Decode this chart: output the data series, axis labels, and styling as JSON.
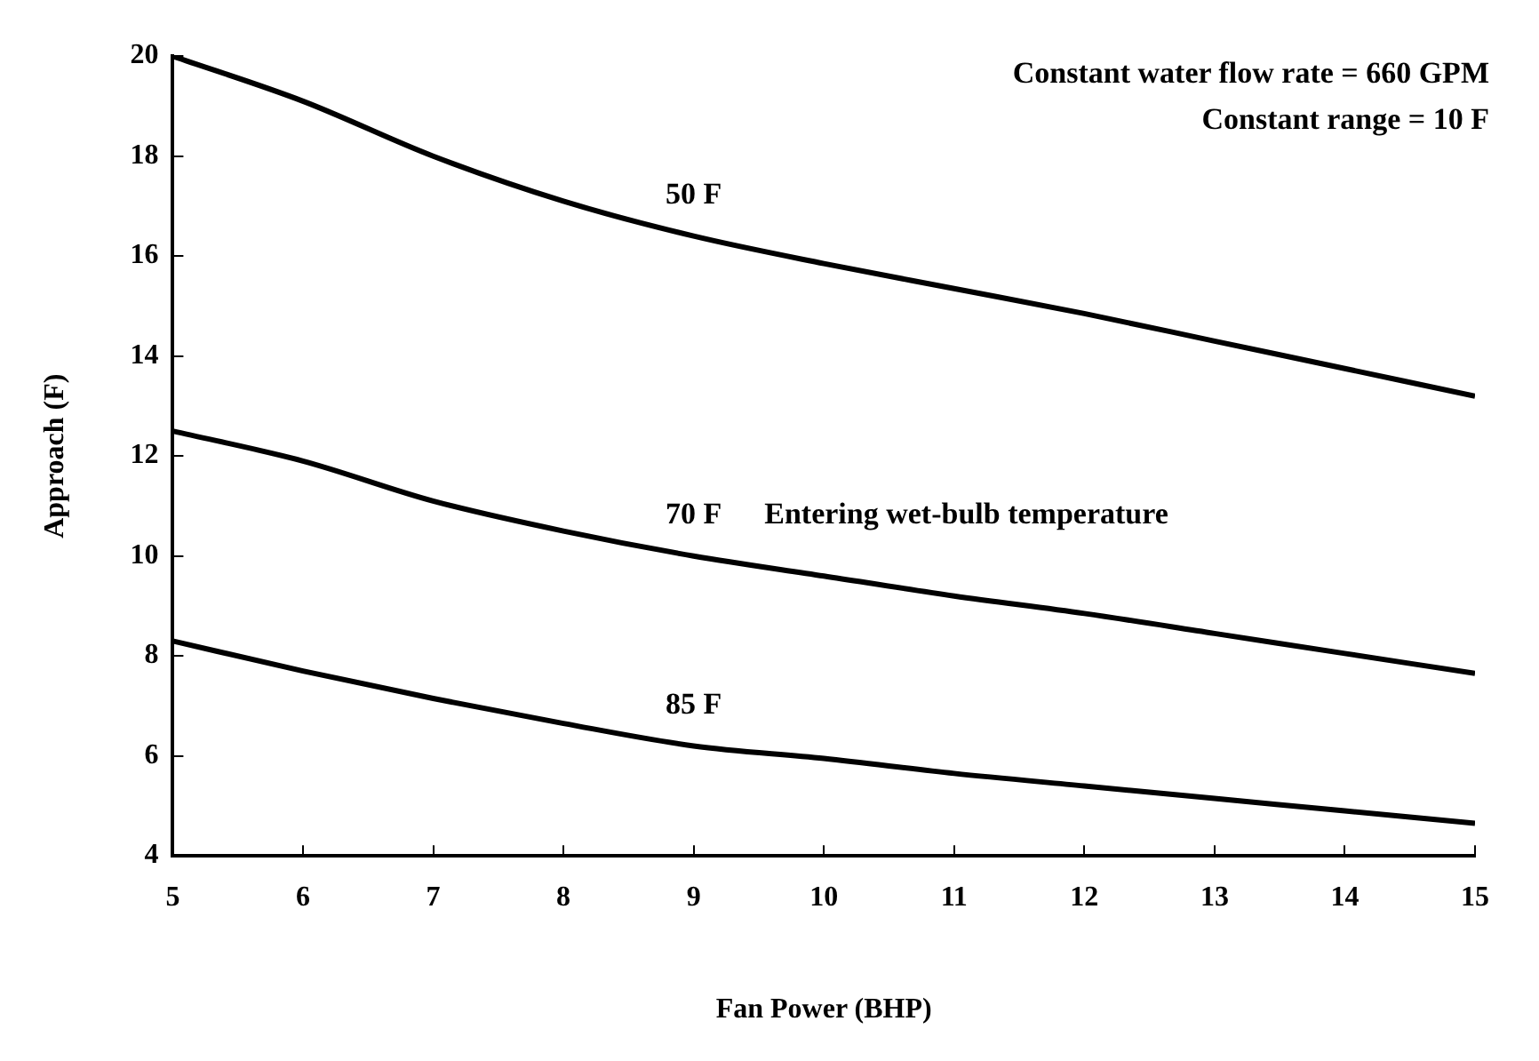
{
  "chart_data": {
    "type": "line",
    "xlabel": "Fan Power (BHP)",
    "ylabel": "Approach (F)",
    "x": [
      5,
      6,
      7,
      8,
      9,
      10,
      11,
      12,
      13,
      14,
      15
    ],
    "series": [
      {
        "name": "50 F",
        "color": "#000000",
        "values": [
          20.0,
          19.1,
          18.0,
          17.1,
          16.4,
          15.85,
          15.35,
          14.85,
          14.3,
          13.75,
          13.2
        ]
      },
      {
        "name": "70 F",
        "color": "#000000",
        "values": [
          12.5,
          11.9,
          11.1,
          10.5,
          10.0,
          9.6,
          9.2,
          8.85,
          8.45,
          8.05,
          7.65
        ]
      },
      {
        "name": "85 F",
        "color": "#000000",
        "values": [
          8.3,
          7.7,
          7.15,
          6.65,
          6.2,
          5.95,
          5.65,
          5.4,
          5.15,
          4.9,
          4.65
        ]
      }
    ],
    "xlim": [
      5,
      15
    ],
    "xticks": [
      5,
      6,
      7,
      8,
      9,
      10,
      11,
      12,
      13,
      14,
      15
    ],
    "ylim": [
      4,
      20
    ],
    "yticks": [
      4,
      6,
      8,
      10,
      12,
      14,
      16,
      18,
      20
    ],
    "grid": false,
    "legend": false,
    "marker": "none",
    "line_style": "solid",
    "legend_title": "Entering wet-bulb temperature",
    "annotations": [
      "Constant water flow rate = 660 GPM",
      "Constant range = 10 F"
    ]
  }
}
